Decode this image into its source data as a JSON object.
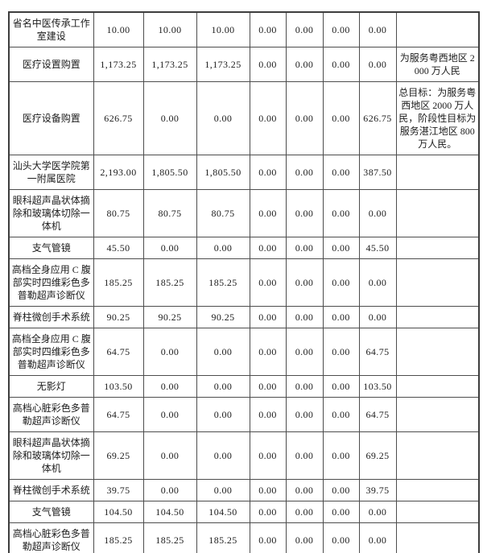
{
  "page": {
    "background_color": "#ffffff",
    "text_color": "#1c1c1c",
    "border_color": "#4d4d4d"
  },
  "table": {
    "rows": [
      {
        "label": "省名中医传承工作室建设",
        "values": [
          "10.00",
          "10.00",
          "10.00",
          "0.00",
          "0.00",
          "0.00",
          "0.00"
        ],
        "note": ""
      },
      {
        "label": "医疗设置购置",
        "values": [
          "1,173.25",
          "1,173.25",
          "1,173.25",
          "0.00",
          "0.00",
          "0.00",
          "0.00"
        ],
        "note": "为服务粤西地区 2000 万人民"
      },
      {
        "label": "医疗设备购置",
        "values": [
          "626.75",
          "0.00",
          "0.00",
          "0.00",
          "0.00",
          "0.00",
          "626.75"
        ],
        "note": "总目标：为服务粤西地区 2000 万人民，阶段性目标为服务湛江地区 800 万人民。"
      },
      {
        "label": "汕头大学医学院第一附属医院",
        "values": [
          "2,193.00",
          "1,805.50",
          "1,805.50",
          "0.00",
          "0.00",
          "0.00",
          "387.50"
        ],
        "note": ""
      },
      {
        "label": "眼科超声晶状体摘除和玻璃体切除一体机",
        "values": [
          "80.75",
          "80.75",
          "80.75",
          "0.00",
          "0.00",
          "0.00",
          "0.00"
        ],
        "note": ""
      },
      {
        "label": "支气管镜",
        "values": [
          "45.50",
          "0.00",
          "0.00",
          "0.00",
          "0.00",
          "0.00",
          "45.50"
        ],
        "note": ""
      },
      {
        "label": "高档全身应用 C 腹部实时四维彩色多普勒超声诊断仪",
        "values": [
          "185.25",
          "185.25",
          "185.25",
          "0.00",
          "0.00",
          "0.00",
          "0.00"
        ],
        "note": ""
      },
      {
        "label": "脊柱微创手术系统",
        "values": [
          "90.25",
          "90.25",
          "90.25",
          "0.00",
          "0.00",
          "0.00",
          "0.00"
        ],
        "note": ""
      },
      {
        "label": "高档全身应用 C 腹部实时四维彩色多普勒超声诊断仪",
        "values": [
          "64.75",
          "0.00",
          "0.00",
          "0.00",
          "0.00",
          "0.00",
          "64.75"
        ],
        "note": ""
      },
      {
        "label": "无影灯",
        "values": [
          "103.50",
          "0.00",
          "0.00",
          "0.00",
          "0.00",
          "0.00",
          "103.50"
        ],
        "note": ""
      },
      {
        "label": "高档心脏彩色多普勒超声诊断仪",
        "values": [
          "64.75",
          "0.00",
          "0.00",
          "0.00",
          "0.00",
          "0.00",
          "64.75"
        ],
        "note": ""
      },
      {
        "label": "眼科超声晶状体摘除和玻璃体切除一体机",
        "values": [
          "69.25",
          "0.00",
          "0.00",
          "0.00",
          "0.00",
          "0.00",
          "69.25"
        ],
        "note": ""
      },
      {
        "label": "脊柱微创手术系统",
        "values": [
          "39.75",
          "0.00",
          "0.00",
          "0.00",
          "0.00",
          "0.00",
          "39.75"
        ],
        "note": ""
      },
      {
        "label": "支气管镜",
        "values": [
          "104.50",
          "104.50",
          "104.50",
          "0.00",
          "0.00",
          "0.00",
          "0.00"
        ],
        "note": ""
      },
      {
        "label": "高档心脏彩色多普勒超声诊断仪",
        "values": [
          "185.25",
          "185.25",
          "185.25",
          "0.00",
          "0.00",
          "0.00",
          "0.00"
        ],
        "note": ""
      }
    ]
  }
}
